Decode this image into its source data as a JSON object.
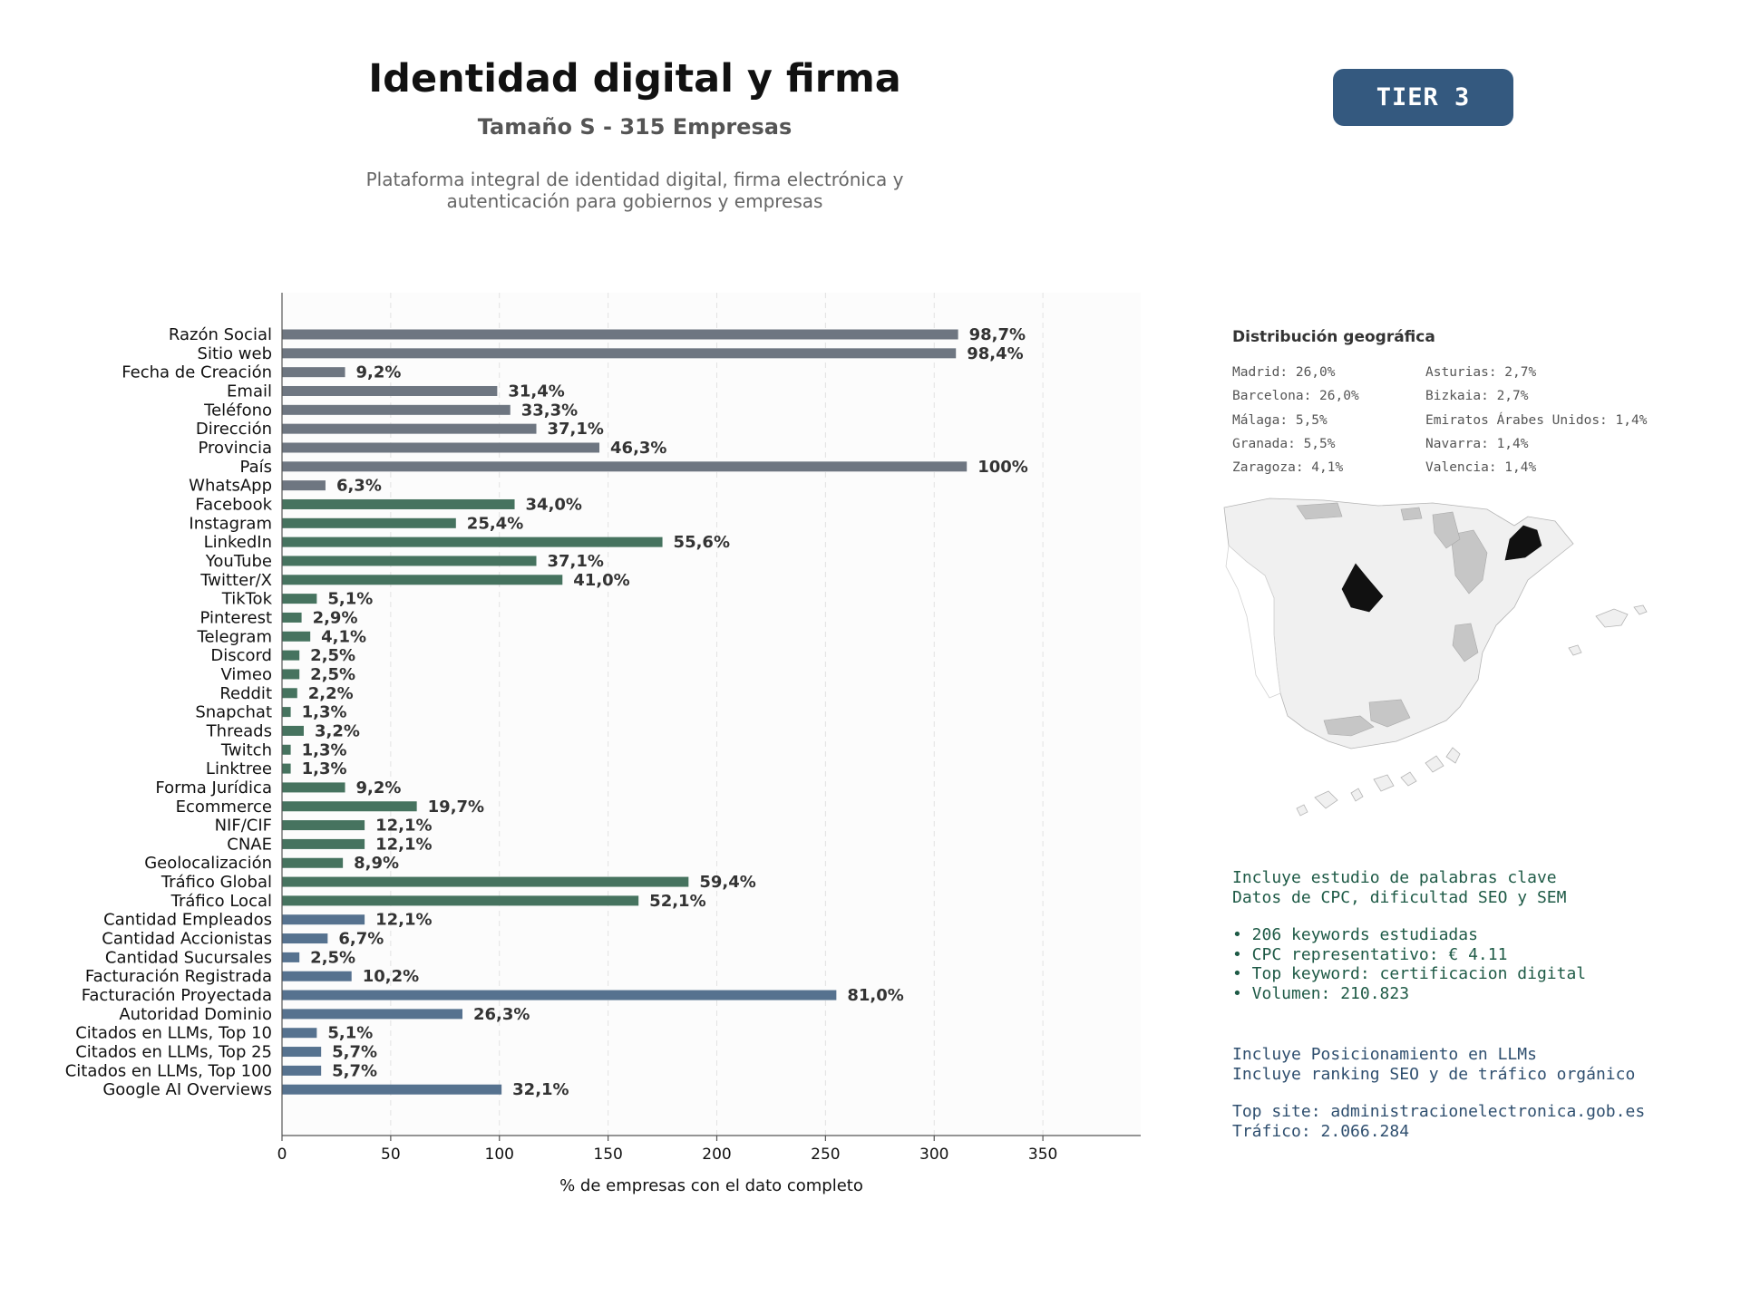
{
  "header": {
    "title": "Identidad digital y firma",
    "subtitle": "Tamaño S - 315 Empresas",
    "description_lines": [
      "Plataforma integral de identidad digital, firma electrónica y",
      "autenticación para gobiernos y empresas"
    ],
    "tier_label": "TIER 3"
  },
  "colors": {
    "tier_badge": "#34597f",
    "group_basic": "#6e7681",
    "group_social": "#46735f",
    "group_business": "#56728f",
    "map_highlight": "#111111",
    "map_default": "#f0f0f0"
  },
  "chart_data": {
    "type": "bar",
    "orientation": "horizontal",
    "xlabel": "% de empresas con el dato completo",
    "xlim": [
      0,
      395
    ],
    "xticks": [
      0,
      50,
      100,
      150,
      200,
      250,
      300,
      350
    ],
    "grid": true,
    "categories": [
      "Razón Social",
      "Sitio web",
      "Fecha de Creación",
      "Email",
      "Teléfono",
      "Dirección",
      "Provincia",
      "País",
      "WhatsApp",
      "Facebook",
      "Instagram",
      "LinkedIn",
      "YouTube",
      "Twitter/X",
      "TikTok",
      "Pinterest",
      "Telegram",
      "Discord",
      "Vimeo",
      "Reddit",
      "Snapchat",
      "Threads",
      "Twitch",
      "Linktree",
      "Forma Jurídica",
      "Ecommerce",
      "NIF/CIF",
      "CNAE",
      "Geolocalización",
      "Tráfico Global",
      "Tráfico Local",
      "Cantidad Empleados",
      "Cantidad Accionistas",
      "Cantidad Sucursales",
      "Facturación Registrada",
      "Facturación Proyectada",
      "Autoridad Dominio",
      "Citados en LLMs, Top 10",
      "Citados en LLMs, Top 25",
      "Citados en LLMs, Top 100",
      "Google AI Overviews"
    ],
    "values": [
      311,
      310,
      29,
      99,
      105,
      117,
      146,
      315,
      20,
      107,
      80,
      175,
      117,
      129,
      16,
      9,
      13,
      8,
      8,
      7,
      4,
      10,
      4,
      4,
      29,
      62,
      38,
      38,
      28,
      187,
      164,
      38,
      21,
      8,
      32,
      255,
      83,
      16,
      18,
      18,
      101
    ],
    "value_labels": [
      "98,7%",
      "98,4%",
      "9,2%",
      "31,4%",
      "33,3%",
      "37,1%",
      "46,3%",
      "100%",
      "6,3%",
      "34,0%",
      "25,4%",
      "55,6%",
      "37,1%",
      "41,0%",
      "5,1%",
      "2,9%",
      "4,1%",
      "2,5%",
      "2,5%",
      "2,2%",
      "1,3%",
      "3,2%",
      "1,3%",
      "1,3%",
      "9,2%",
      "19,7%",
      "12,1%",
      "12,1%",
      "8,9%",
      "59,4%",
      "52,1%",
      "12,1%",
      "6,7%",
      "2,5%",
      "10,2%",
      "81,0%",
      "26,3%",
      "5,1%",
      "5,7%",
      "5,7%",
      "32,1%"
    ],
    "bar_groups": [
      "basic",
      "basic",
      "basic",
      "basic",
      "basic",
      "basic",
      "basic",
      "basic",
      "basic",
      "social",
      "social",
      "social",
      "social",
      "social",
      "social",
      "social",
      "social",
      "social",
      "social",
      "social",
      "social",
      "social",
      "social",
      "social",
      "social",
      "social",
      "social",
      "social",
      "social",
      "social",
      "social",
      "business",
      "business",
      "business",
      "business",
      "business",
      "business",
      "business",
      "business",
      "business",
      "business"
    ]
  },
  "geo": {
    "title": "Distribución geográfica",
    "column_1": [
      "Madrid: 26,0%",
      "Barcelona: 26,0%",
      "Málaga: 5,5%",
      "Granada: 5,5%",
      "Zaragoza: 4,1%"
    ],
    "column_2": [
      "Asturias: 2,7%",
      "Bizkaia: 2,7%",
      "Emiratos Árabes Unidos: 1,4%",
      "Navarra: 1,4%",
      "Valencia: 1,4%"
    ]
  },
  "keywords": {
    "lines": [
      "Incluye estudio de palabras clave",
      "Datos de CPC, dificultad SEO y SEM",
      "• 206 keywords estudiadas",
      "• CPC representativo: € 4.11",
      "• Top keyword: certificacion digital",
      "• Volumen: 210.823"
    ]
  },
  "llm": {
    "lines": [
      "Incluye Posicionamiento en LLMs",
      "Incluye ranking SEO y de tráfico orgánico",
      "Top site: administracionelectronica.gob.es",
      "Tráfico: 2.066.284"
    ]
  }
}
